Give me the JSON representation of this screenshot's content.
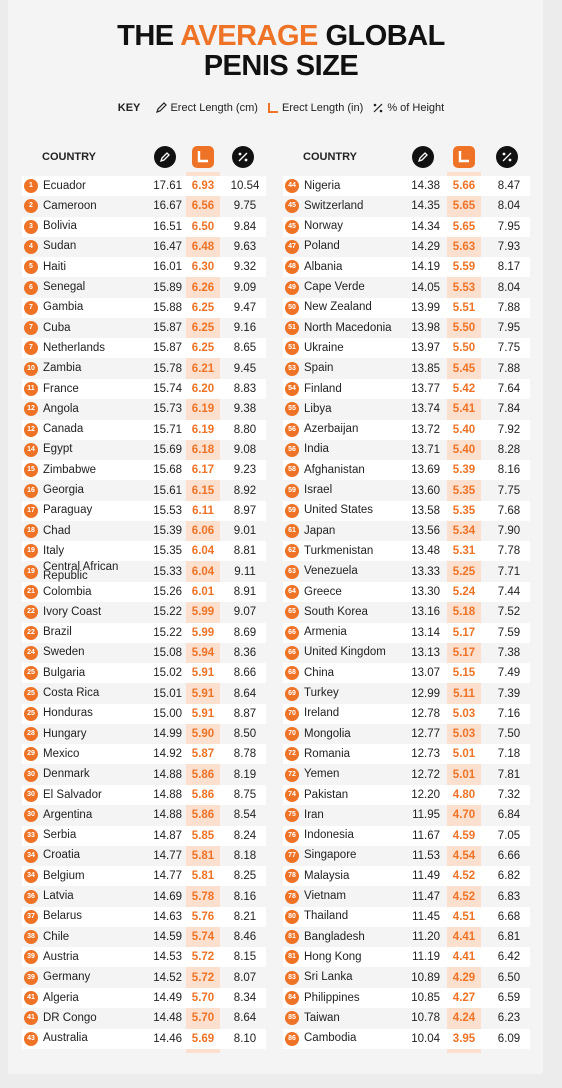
{
  "header": {
    "title": {
      "part1": "THE",
      "part2": "AVERAGE",
      "part3": "GLOBAL",
      "line2": "PENIS SIZE"
    },
    "key": {
      "label": "KEY",
      "cm": "Erect Length (cm)",
      "in": "Erect Length (in)",
      "pct": "% of Height"
    }
  },
  "table": {
    "left": {
      "country_header": "COUNTRY",
      "rows": [
        [
          "1",
          "Ecuador",
          "17.61",
          "6.93",
          "10.54"
        ],
        [
          "2",
          "Cameroon",
          "16.67",
          "6.56",
          "9.75"
        ],
        [
          "3",
          "Bolivia",
          "16.51",
          "6.50",
          "9.84"
        ],
        [
          "4",
          "Sudan",
          "16.47",
          "6.48",
          "9.63"
        ],
        [
          "5",
          "Haiti",
          "16.01",
          "6.30",
          "9.32"
        ],
        [
          "6",
          "Senegal",
          "15.89",
          "6.26",
          "9.09"
        ],
        [
          "7",
          "Gambia",
          "15.88",
          "6.25",
          "9.47"
        ],
        [
          "7",
          "Cuba",
          "15.87",
          "6.25",
          "9.16"
        ],
        [
          "7",
          "Netherlands",
          "15.87",
          "6.25",
          "8.65"
        ],
        [
          "10",
          "Zambia",
          "15.78",
          "6.21",
          "9.45"
        ],
        [
          "11",
          "France",
          "15.74",
          "6.20",
          "8.83"
        ],
        [
          "12",
          "Angola",
          "15.73",
          "6.19",
          "9.38"
        ],
        [
          "12",
          "Canada",
          "15.71",
          "6.19",
          "8.80"
        ],
        [
          "14",
          "Egypt",
          "15.69",
          "6.18",
          "9.08"
        ],
        [
          "15",
          "Zimbabwe",
          "15.68",
          "6.17",
          "9.23"
        ],
        [
          "16",
          "Georgia",
          "15.61",
          "6.15",
          "8.92"
        ],
        [
          "17",
          "Paraguay",
          "15.53",
          "6.11",
          "8.97"
        ],
        [
          "18",
          "Chad",
          "15.39",
          "6.06",
          "9.01"
        ],
        [
          "19",
          "Italy",
          "15.35",
          "6.04",
          "8.81"
        ],
        [
          "19",
          "Central African Republic",
          "15.33",
          "6.04",
          "9.11"
        ],
        [
          "21",
          "Colombia",
          "15.26",
          "6.01",
          "8.91"
        ],
        [
          "22",
          "Ivory Coast",
          "15.22",
          "5.99",
          "9.07"
        ],
        [
          "22",
          "Brazil",
          "15.22",
          "5.99",
          "8.69"
        ],
        [
          "24",
          "Sweden",
          "15.08",
          "5.94",
          "8.36"
        ],
        [
          "25",
          "Bulgaria",
          "15.02",
          "5.91",
          "8.66"
        ],
        [
          "25",
          "Costa Rica",
          "15.01",
          "5.91",
          "8.64"
        ],
        [
          "25",
          "Honduras",
          "15.00",
          "5.91",
          "8.87"
        ],
        [
          "28",
          "Hungary",
          "14.99",
          "5.90",
          "8.50"
        ],
        [
          "29",
          "Mexico",
          "14.92",
          "5.87",
          "8.78"
        ],
        [
          "30",
          "Denmark",
          "14.88",
          "5.86",
          "8.19"
        ],
        [
          "30",
          "El Salvador",
          "14.88",
          "5.86",
          "8.75"
        ],
        [
          "30",
          "Argentina",
          "14.88",
          "5.86",
          "8.54"
        ],
        [
          "33",
          "Serbia",
          "14.87",
          "5.85",
          "8.24"
        ],
        [
          "34",
          "Croatia",
          "14.77",
          "5.81",
          "8.18"
        ],
        [
          "34",
          "Belgium",
          "14.77",
          "5.81",
          "8.25"
        ],
        [
          "36",
          "Latvia",
          "14.69",
          "5.78",
          "8.16"
        ],
        [
          "37",
          "Belarus",
          "14.63",
          "5.76",
          "8.21"
        ],
        [
          "38",
          "Chile",
          "14.59",
          "5.74",
          "8.46"
        ],
        [
          "39",
          "Austria",
          "14.53",
          "5.72",
          "8.15"
        ],
        [
          "39",
          "Germany",
          "14.52",
          "5.72",
          "8.07"
        ],
        [
          "41",
          "Algeria",
          "14.49",
          "5.70",
          "8.34"
        ],
        [
          "41",
          "DR Congo",
          "14.48",
          "5.70",
          "8.64"
        ],
        [
          "43",
          "Australia",
          "14.46",
          "5.69",
          "8.10"
        ]
      ]
    },
    "right": {
      "country_header": "COUNTRY",
      "rows": [
        [
          "44",
          "Nigeria",
          "14.38",
          "5.66",
          "8.47"
        ],
        [
          "45",
          "Switzerland",
          "14.35",
          "5.65",
          "8.04"
        ],
        [
          "45",
          "Norway",
          "14.34",
          "5.65",
          "7.95"
        ],
        [
          "47",
          "Poland",
          "14.29",
          "5.63",
          "7.93"
        ],
        [
          "48",
          "Albania",
          "14.19",
          "5.59",
          "8.17"
        ],
        [
          "49",
          "Cape Verde",
          "14.05",
          "5.53",
          "8.04"
        ],
        [
          "50",
          "New Zealand",
          "13.99",
          "5.51",
          "7.88"
        ],
        [
          "51",
          "North Macedonia",
          "13.98",
          "5.50",
          "7.95"
        ],
        [
          "51",
          "Ukraine",
          "13.97",
          "5.50",
          "7.75"
        ],
        [
          "53",
          "Spain",
          "13.85",
          "5.45",
          "7.88"
        ],
        [
          "54",
          "Finland",
          "13.77",
          "5.42",
          "7.64"
        ],
        [
          "55",
          "Libya",
          "13.74",
          "5.41",
          "7.84"
        ],
        [
          "56",
          "Azerbaijan",
          "13.72",
          "5.40",
          "7.92"
        ],
        [
          "56",
          "India",
          "13.71",
          "5.40",
          "8.28"
        ],
        [
          "58",
          "Afghanistan",
          "13.69",
          "5.39",
          "8.16"
        ],
        [
          "59",
          "Israel",
          "13.60",
          "5.35",
          "7.75"
        ],
        [
          "59",
          "United States",
          "13.58",
          "5.35",
          "7.68"
        ],
        [
          "61",
          "Japan",
          "13.56",
          "5.34",
          "7.90"
        ],
        [
          "62",
          "Turkmenistan",
          "13.48",
          "5.31",
          "7.78"
        ],
        [
          "63",
          "Venezuela",
          "13.33",
          "5.25",
          "7.71"
        ],
        [
          "64",
          "Greece",
          "13.30",
          "5.24",
          "7.44"
        ],
        [
          "65",
          "South Korea",
          "13.16",
          "5.18",
          "7.52"
        ],
        [
          "66",
          "Armenia",
          "13.14",
          "5.17",
          "7.59"
        ],
        [
          "66",
          "United Kingdom",
          "13.13",
          "5.17",
          "7.38"
        ],
        [
          "68",
          "China",
          "13.07",
          "5.15",
          "7.49"
        ],
        [
          "69",
          "Turkey",
          "12.99",
          "5.11",
          "7.39"
        ],
        [
          "70",
          "Ireland",
          "12.78",
          "5.03",
          "7.16"
        ],
        [
          "70",
          "Mongolia",
          "12.77",
          "5.03",
          "7.50"
        ],
        [
          "72",
          "Romania",
          "12.73",
          "5.01",
          "7.18"
        ],
        [
          "72",
          "Yemen",
          "12.72",
          "5.01",
          "7.81"
        ],
        [
          "74",
          "Pakistan",
          "12.20",
          "4.80",
          "7.32"
        ],
        [
          "75",
          "Iran",
          "11.95",
          "4.70",
          "6.84"
        ],
        [
          "76",
          "Indonesia",
          "11.67",
          "4.59",
          "7.05"
        ],
        [
          "77",
          "Singapore",
          "11.53",
          "4.54",
          "6.66"
        ],
        [
          "78",
          "Malaysia",
          "11.49",
          "4.52",
          "6.82"
        ],
        [
          "78",
          "Vietnam",
          "11.47",
          "4.52",
          "6.83"
        ],
        [
          "80",
          "Thailand",
          "11.45",
          "4.51",
          "6.68"
        ],
        [
          "81",
          "Bangladesh",
          "11.20",
          "4.41",
          "6.81"
        ],
        [
          "81",
          "Hong Kong",
          "11.19",
          "4.41",
          "6.42"
        ],
        [
          "83",
          "Sri Lanka",
          "10.89",
          "4.29",
          "6.50"
        ],
        [
          "84",
          "Philippines",
          "10.85",
          "4.27",
          "6.59"
        ],
        [
          "85",
          "Taiwan",
          "10.78",
          "4.24",
          "6.23"
        ],
        [
          "86",
          "Cambodia",
          "10.04",
          "3.95",
          "6.09"
        ]
      ]
    }
  }
}
